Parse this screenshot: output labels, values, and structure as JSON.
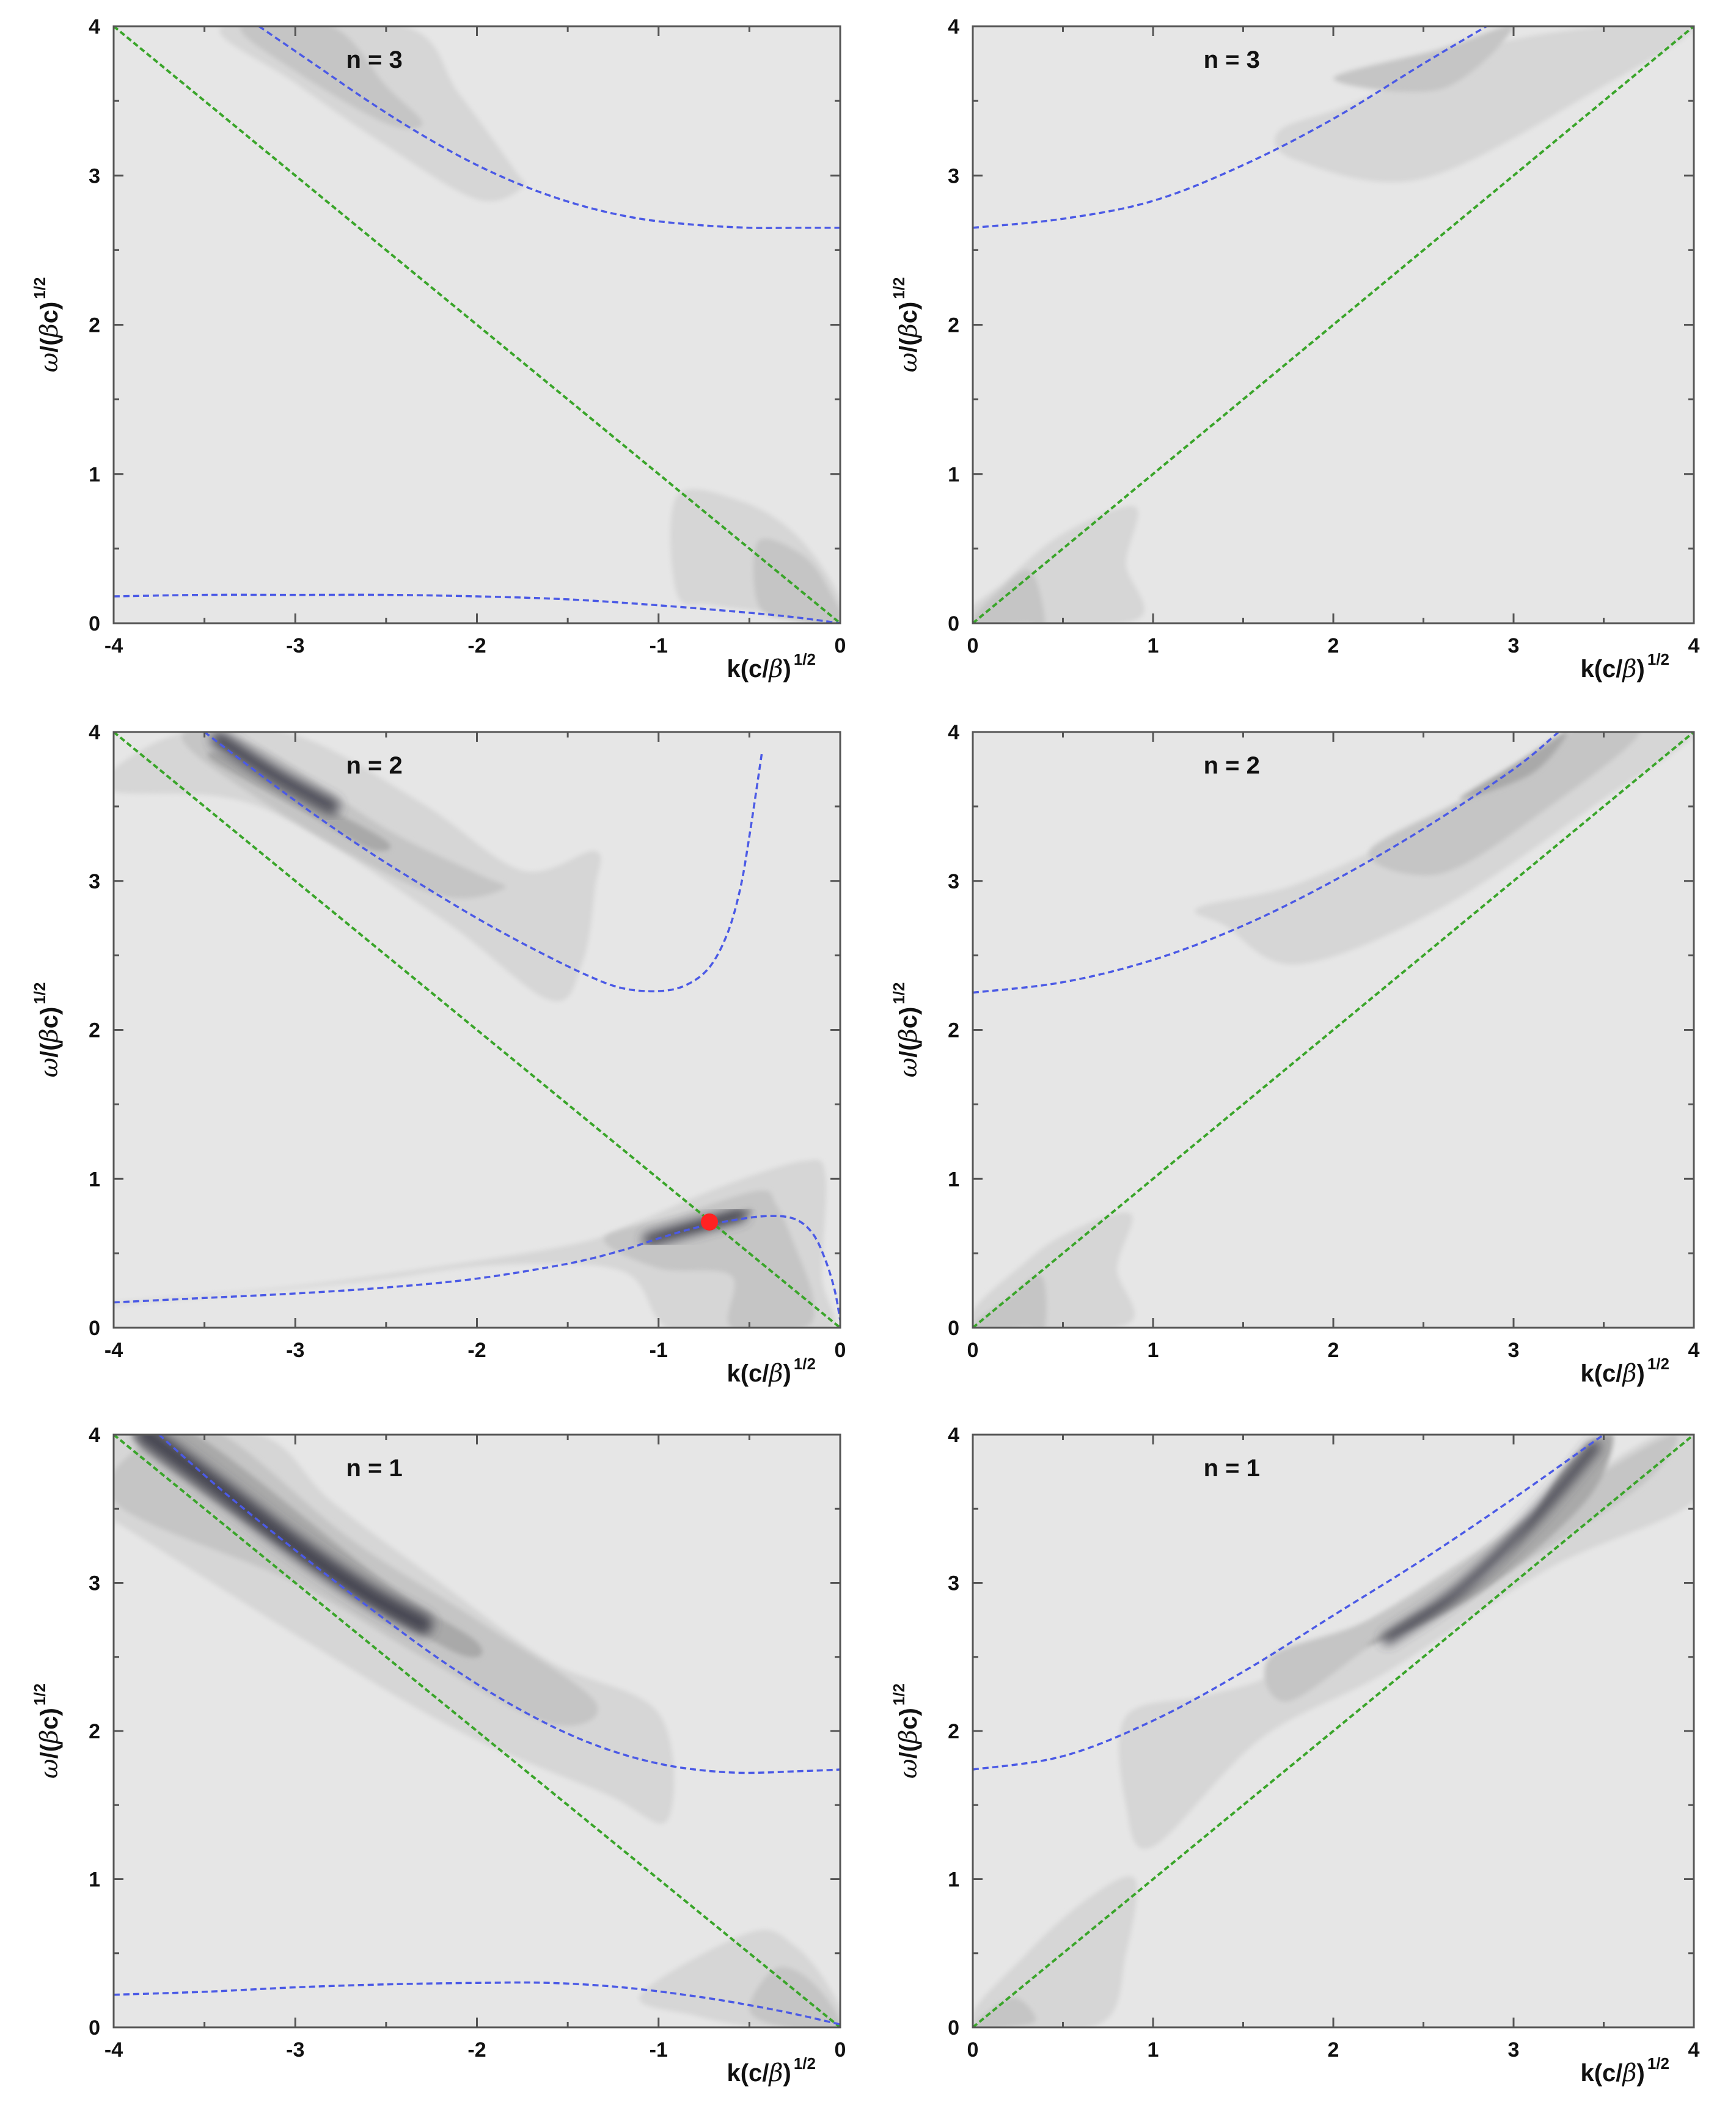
{
  "colors": {
    "background": "#e6e6e6",
    "band_light": "#d6d6d6",
    "band_mid": "#c5c5c5",
    "band_dark": "#a9a9a9",
    "band_core": "#3e3e48",
    "green_line": "#3aa52a",
    "blue_curve": "#4b5ae6",
    "red_point": "#ff2222",
    "frame": "#555555"
  },
  "chart_data": [
    {
      "type": "heatmap",
      "panel_label": "n = 3",
      "xlabel": "k(c/β)",
      "xlabel_sup": "1/2",
      "ylabel": "ω/(βc)",
      "ylabel_sup": "1/2",
      "xlim": [
        -4,
        0
      ],
      "ylim": [
        0,
        4
      ],
      "x_tick_labels": [
        "-4",
        "-3",
        "-2",
        "-1",
        "0"
      ],
      "y_tick_labels": [
        "0",
        "1",
        "2",
        "3",
        "4"
      ],
      "series": [
        {
          "kind": "light-line",
          "x": [
            -4,
            0
          ],
          "y": [
            4,
            0
          ]
        },
        {
          "kind": "dispersion-upper",
          "x": [
            -3.2,
            -2.9,
            -2.6,
            -2.3,
            -2.0,
            -1.7,
            -1.4,
            -1.1,
            -0.8,
            -0.5,
            -0.2,
            0
          ],
          "y": [
            4.0,
            3.75,
            3.5,
            3.27,
            3.07,
            2.91,
            2.79,
            2.71,
            2.67,
            2.65,
            2.65,
            2.65
          ]
        },
        {
          "kind": "dispersion-lower",
          "x": [
            -4,
            -3.5,
            -3,
            -2.5,
            -2,
            -1.5,
            -1,
            -0.5,
            -0.25,
            0
          ],
          "y": [
            0.18,
            0.19,
            0.19,
            0.19,
            0.18,
            0.16,
            0.12,
            0.07,
            0.04,
            0.0
          ]
        }
      ]
    },
    {
      "type": "heatmap",
      "panel_label": "n = 3",
      "xlabel": "k(c/β)",
      "xlabel_sup": "1/2",
      "ylabel": "ω/(βc)",
      "ylabel_sup": "1/2",
      "xlim": [
        0,
        4
      ],
      "ylim": [
        0,
        4
      ],
      "x_tick_labels": [
        "0",
        "1",
        "2",
        "3",
        "4"
      ],
      "y_tick_labels": [
        "0",
        "1",
        "2",
        "3",
        "4"
      ],
      "series": [
        {
          "kind": "light-line",
          "x": [
            0,
            4
          ],
          "y": [
            0,
            4
          ]
        },
        {
          "kind": "dispersion-upper",
          "x": [
            0,
            0.5,
            1.0,
            1.5,
            2.0,
            2.5,
            2.85
          ],
          "y": [
            2.65,
            2.71,
            2.83,
            3.07,
            3.38,
            3.75,
            4.0
          ]
        }
      ]
    },
    {
      "type": "heatmap",
      "panel_label": "n = 2",
      "xlabel": "k(c/β)",
      "xlabel_sup": "1/2",
      "ylabel": "ω/(βc)",
      "ylabel_sup": "1/2",
      "xlim": [
        -4,
        0
      ],
      "ylim": [
        0,
        4
      ],
      "x_tick_labels": [
        "-4",
        "-3",
        "-2",
        "-1",
        "0"
      ],
      "y_tick_labels": [
        "0",
        "1",
        "2",
        "3",
        "4"
      ],
      "series": [
        {
          "kind": "light-line",
          "x": [
            -4,
            0
          ],
          "y": [
            4,
            0
          ]
        },
        {
          "kind": "dispersion-upper",
          "x": [
            -3.5,
            -3.2,
            -2.9,
            -2.6,
            -2.3,
            -2.0,
            -1.7,
            -1.4,
            -1.2,
            -1.0,
            -0.85,
            -0.72,
            -0.62,
            -0.55,
            -0.5,
            -0.43
          ],
          "y": [
            4.0,
            3.72,
            3.45,
            3.2,
            2.97,
            2.75,
            2.55,
            2.37,
            2.28,
            2.26,
            2.3,
            2.42,
            2.65,
            2.95,
            3.3,
            3.87
          ]
        },
        {
          "kind": "dispersion-lower",
          "x": [
            -4,
            -3.5,
            -3,
            -2.5,
            -2,
            -1.5,
            -1.2,
            -1.0,
            -0.8,
            -0.6,
            -0.4,
            -0.25,
            -0.15,
            -0.08,
            -0.03,
            0
          ],
          "y": [
            0.17,
            0.2,
            0.23,
            0.27,
            0.33,
            0.43,
            0.52,
            0.6,
            0.67,
            0.72,
            0.75,
            0.73,
            0.63,
            0.45,
            0.25,
            0.05
          ]
        },
        {
          "kind": "resonance-point",
          "x": [
            -0.72
          ],
          "y": [
            0.71
          ]
        }
      ]
    },
    {
      "type": "heatmap",
      "panel_label": "n = 2",
      "xlabel": "k(c/β)",
      "xlabel_sup": "1/2",
      "ylabel": "ω/(βc)",
      "ylabel_sup": "1/2",
      "xlim": [
        0,
        4
      ],
      "ylim": [
        0,
        4
      ],
      "x_tick_labels": [
        "0",
        "1",
        "2",
        "3",
        "4"
      ],
      "y_tick_labels": [
        "0",
        "1",
        "2",
        "3",
        "4"
      ],
      "series": [
        {
          "kind": "light-line",
          "x": [
            0,
            4
          ],
          "y": [
            0,
            4
          ]
        },
        {
          "kind": "dispersion-upper",
          "x": [
            0,
            0.5,
            1.0,
            1.5,
            2.0,
            2.5,
            3.0,
            3.25
          ],
          "y": [
            2.25,
            2.32,
            2.47,
            2.7,
            3.0,
            3.35,
            3.75,
            4.0
          ]
        }
      ]
    },
    {
      "type": "heatmap",
      "panel_label": "n = 1",
      "xlabel": "k(c/β)",
      "xlabel_sup": "1/2",
      "ylabel": "ω/(βc)",
      "ylabel_sup": "1/2",
      "xlim": [
        -4,
        0
      ],
      "ylim": [
        0,
        4
      ],
      "x_tick_labels": [
        "-4",
        "-3",
        "-2",
        "-1",
        "0"
      ],
      "y_tick_labels": [
        "0",
        "1",
        "2",
        "3",
        "4"
      ],
      "series": [
        {
          "kind": "light-line",
          "x": [
            -4,
            0
          ],
          "y": [
            4,
            0
          ]
        },
        {
          "kind": "dispersion-upper",
          "x": [
            -3.75,
            -3.4,
            -3.0,
            -2.6,
            -2.2,
            -1.8,
            -1.4,
            -1.0,
            -0.6,
            -0.2,
            0
          ],
          "y": [
            4.0,
            3.62,
            3.22,
            2.84,
            2.48,
            2.17,
            1.93,
            1.78,
            1.72,
            1.73,
            1.74
          ]
        },
        {
          "kind": "dispersion-lower",
          "x": [
            -4,
            -3.5,
            -3,
            -2.5,
            -2,
            -1.6,
            -1.2,
            -0.8,
            -0.5,
            -0.25,
            0
          ],
          "y": [
            0.22,
            0.24,
            0.27,
            0.29,
            0.3,
            0.3,
            0.27,
            0.21,
            0.15,
            0.09,
            0.02
          ]
        }
      ]
    },
    {
      "type": "heatmap",
      "panel_label": "n = 1",
      "xlabel": "k(c/β)",
      "xlabel_sup": "1/2",
      "ylabel": "ω/(βc)",
      "ylabel_sup": "1/2",
      "xlim": [
        0,
        4
      ],
      "ylim": [
        0,
        4
      ],
      "x_tick_labels": [
        "0",
        "1",
        "2",
        "3",
        "4"
      ],
      "y_tick_labels": [
        "0",
        "1",
        "2",
        "3",
        "4"
      ],
      "series": [
        {
          "kind": "light-line",
          "x": [
            0,
            4
          ],
          "y": [
            0,
            4
          ]
        },
        {
          "kind": "dispersion-upper",
          "x": [
            0,
            0.5,
            1.0,
            1.5,
            2.0,
            2.5,
            3.0,
            3.5
          ],
          "y": [
            1.74,
            1.83,
            2.07,
            2.4,
            2.78,
            3.16,
            3.57,
            4.0
          ]
        }
      ]
    }
  ]
}
